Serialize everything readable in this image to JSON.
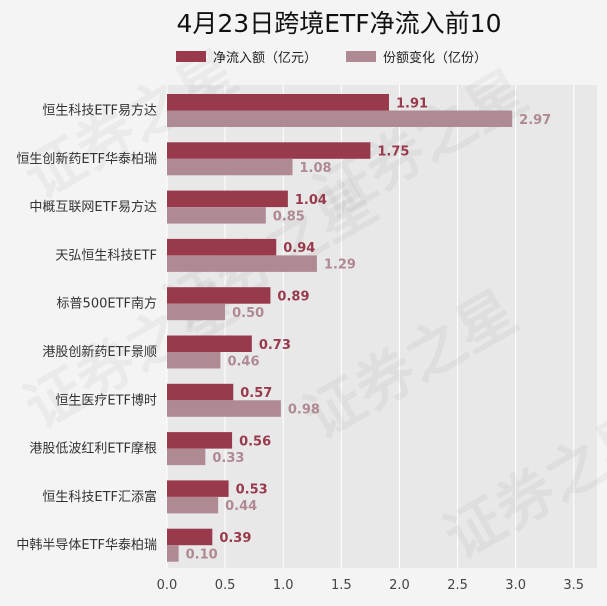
{
  "chart_data": {
    "type": "bar",
    "orientation": "horizontal",
    "title": "4月23日跨境ETF净流入前10",
    "categories": [
      "恒生科技ETF易方达",
      "恒生创新药ETF华泰柏瑞",
      "中概互联网ETF易方达",
      "天弘恒生科技ETF",
      "标普500ETF南方",
      "港股创新药ETF景顺",
      "恒生医疗ETF博时",
      "港股低波红利ETF摩根",
      "恒生科技ETF汇添富",
      "中韩半导体ETF华泰柏瑞"
    ],
    "series": [
      {
        "name": "净流入额（亿元）",
        "color": "#993a4c",
        "values": [
          1.91,
          1.75,
          1.04,
          0.94,
          0.89,
          0.73,
          0.57,
          0.56,
          0.53,
          0.39
        ],
        "labels": [
          "1.91",
          "1.75",
          "1.04",
          "0.94",
          "0.89",
          "0.73",
          "0.57",
          "0.56",
          "0.53",
          "0.39"
        ]
      },
      {
        "name": "份额变化（亿份）",
        "color": "#b08a93",
        "values": [
          2.97,
          1.08,
          0.85,
          1.29,
          0.5,
          0.46,
          0.98,
          0.33,
          0.44,
          0.1
        ],
        "labels": [
          "2.97",
          "1.08",
          "0.85",
          "1.29",
          "0.50",
          "0.46",
          "0.98",
          "0.33",
          "0.44",
          "0.10"
        ]
      }
    ],
    "xlim": [
      0,
      3.7
    ],
    "xticks": [
      "0.0",
      "0.5",
      "1.0",
      "1.5",
      "2.0",
      "2.5",
      "3.0",
      "3.5"
    ],
    "xtick_values": [
      0,
      0.5,
      1,
      1.5,
      2,
      2.5,
      3,
      3.5
    ],
    "grid": "vertical",
    "legend_placement": "top-center"
  },
  "watermark": {
    "text": "证券之星"
  }
}
